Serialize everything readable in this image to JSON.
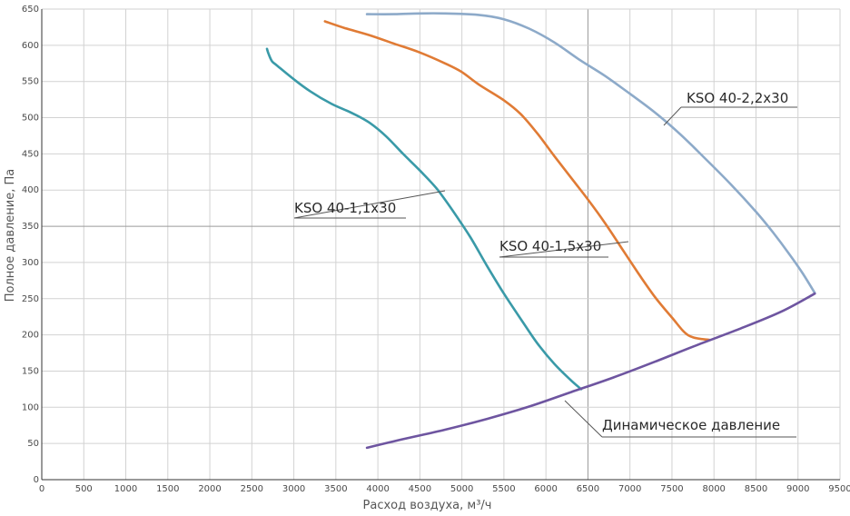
{
  "chart_data": {
    "type": "line",
    "xlabel": "Расход воздуха, м³/ч",
    "ylabel": "Полное давление, Па",
    "xlim": [
      0,
      9500
    ],
    "ylim": [
      0,
      650
    ],
    "x_ticks": [
      0,
      500,
      1000,
      1500,
      2000,
      2500,
      3000,
      3500,
      4000,
      4500,
      5000,
      5500,
      6000,
      6500,
      7000,
      7500,
      8000,
      8500,
      9000,
      9500
    ],
    "y_ticks": [
      0,
      50,
      100,
      150,
      200,
      250,
      300,
      350,
      400,
      450,
      500,
      550,
      600,
      650
    ],
    "grid": true,
    "series": [
      {
        "name": "KSO 40-1,1x30",
        "color": "#3a9aa8",
        "points": [
          [
            2680,
            595
          ],
          [
            2700,
            588
          ],
          [
            2740,
            578
          ],
          [
            2800,
            572
          ],
          [
            3000,
            553
          ],
          [
            3200,
            536
          ],
          [
            3450,
            519
          ],
          [
            3700,
            506
          ],
          [
            3900,
            493
          ],
          [
            4100,
            474
          ],
          [
            4300,
            450
          ],
          [
            4500,
            427
          ],
          [
            4700,
            402
          ],
          [
            4900,
            370
          ],
          [
            5100,
            335
          ],
          [
            5300,
            295
          ],
          [
            5500,
            257
          ],
          [
            5700,
            222
          ],
          [
            5900,
            188
          ],
          [
            6100,
            160
          ],
          [
            6300,
            137
          ],
          [
            6420,
            125
          ]
        ]
      },
      {
        "name": "KSO 40-1,5x30",
        "color": "#e07b35",
        "points": [
          [
            3370,
            633
          ],
          [
            3600,
            624
          ],
          [
            3900,
            614
          ],
          [
            4200,
            602
          ],
          [
            4500,
            590
          ],
          [
            4800,
            575
          ],
          [
            5000,
            563
          ],
          [
            5200,
            546
          ],
          [
            5500,
            524
          ],
          [
            5700,
            505
          ],
          [
            5900,
            478
          ],
          [
            6100,
            447
          ],
          [
            6300,
            417
          ],
          [
            6500,
            387
          ],
          [
            6700,
            355
          ],
          [
            6900,
            320
          ],
          [
            7100,
            285
          ],
          [
            7300,
            252
          ],
          [
            7500,
            224
          ],
          [
            7700,
            199
          ],
          [
            7950,
            193
          ]
        ]
      },
      {
        "name": "KSO 40-2,2x30",
        "color": "#8daac9",
        "points": [
          [
            3870,
            643
          ],
          [
            4200,
            643
          ],
          [
            4500,
            644
          ],
          [
            4800,
            644
          ],
          [
            5200,
            642
          ],
          [
            5500,
            636
          ],
          [
            5800,
            623
          ],
          [
            6100,
            604
          ],
          [
            6400,
            580
          ],
          [
            6700,
            558
          ],
          [
            7000,
            533
          ],
          [
            7300,
            507
          ],
          [
            7600,
            477
          ],
          [
            7900,
            443
          ],
          [
            8200,
            408
          ],
          [
            8500,
            370
          ],
          [
            8700,
            342
          ],
          [
            8900,
            311
          ],
          [
            9050,
            286
          ],
          [
            9200,
            258
          ]
        ]
      },
      {
        "name": "Динамическое давление",
        "color": "#6e55a0",
        "points": [
          [
            3870,
            44
          ],
          [
            4300,
            56
          ],
          [
            4800,
            69
          ],
          [
            5300,
            84
          ],
          [
            5800,
            101
          ],
          [
            6300,
            121
          ],
          [
            6800,
            141
          ],
          [
            7300,
            163
          ],
          [
            7800,
            186
          ],
          [
            8300,
            208
          ],
          [
            8800,
            232
          ],
          [
            9200,
            257
          ]
        ]
      }
    ],
    "annotations": [
      {
        "text": "KSO 40-2,2x30",
        "series_index": 2
      },
      {
        "text": "KSO 40-1,1x30",
        "series_index": 0
      },
      {
        "text": "KSO 40-1,5x30",
        "series_index": 1
      },
      {
        "text": "Динамическое давление",
        "series_index": 3
      }
    ]
  }
}
